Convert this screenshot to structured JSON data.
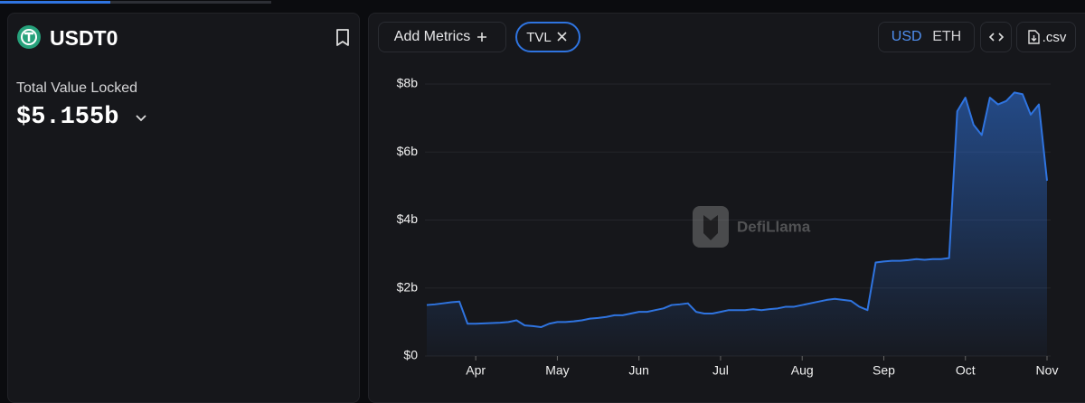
{
  "header": {
    "name": "USDT0",
    "metric_label": "Total Value Locked",
    "metric_value": "$5.155b"
  },
  "toolbar": {
    "add_metrics": "Add Metrics",
    "metric_tag": "TVL",
    "currencies": [
      "USD",
      "ETH"
    ],
    "download": ".csv"
  },
  "watermark": "DefiLlama",
  "chart_data": {
    "type": "area",
    "categories": [
      null,
      null,
      null,
      null,
      null,
      null,
      "Apr",
      null,
      null,
      null,
      null,
      null,
      null,
      null,
      null,
      null,
      "May",
      null,
      null,
      null,
      null,
      null,
      null,
      null,
      null,
      null,
      "Jun",
      null,
      null,
      null,
      null,
      null,
      null,
      null,
      null,
      null,
      "Jul",
      null,
      null,
      null,
      null,
      null,
      null,
      null,
      null,
      null,
      "Aug",
      null,
      null,
      null,
      null,
      null,
      null,
      null,
      null,
      null,
      "Sep",
      null,
      null,
      null,
      null,
      null,
      null,
      null,
      null,
      null,
      "Oct",
      null,
      null,
      null,
      null,
      null,
      null,
      null,
      null,
      null,
      "Nov"
    ],
    "values": [
      1.5,
      1.52,
      1.55,
      1.58,
      1.6,
      0.95,
      0.95,
      0.96,
      0.97,
      0.98,
      1.0,
      1.05,
      0.9,
      0.88,
      0.85,
      0.95,
      1.0,
      1.0,
      1.02,
      1.05,
      1.1,
      1.12,
      1.15,
      1.2,
      1.2,
      1.25,
      1.3,
      1.3,
      1.35,
      1.4,
      1.5,
      1.52,
      1.55,
      1.3,
      1.25,
      1.25,
      1.3,
      1.35,
      1.35,
      1.35,
      1.38,
      1.35,
      1.38,
      1.4,
      1.45,
      1.45,
      1.5,
      1.55,
      1.6,
      1.65,
      1.68,
      1.65,
      1.62,
      1.45,
      1.35,
      2.75,
      2.78,
      2.8,
      2.8,
      2.82,
      2.85,
      2.83,
      2.85,
      2.85,
      2.88,
      7.2,
      7.6,
      6.8,
      6.5,
      7.6,
      7.4,
      7.5,
      7.75,
      7.7,
      7.1,
      7.4,
      5.155
    ],
    "color": "#2f74e0",
    "ylim": [
      0,
      8
    ],
    "yticks": [
      {
        "value": 0,
        "label": "$0"
      },
      {
        "value": 2,
        "label": "$2b"
      },
      {
        "value": 4,
        "label": "$4b"
      },
      {
        "value": 6,
        "label": "$6b"
      },
      {
        "value": 8,
        "label": "$8b"
      }
    ],
    "grid": true
  }
}
